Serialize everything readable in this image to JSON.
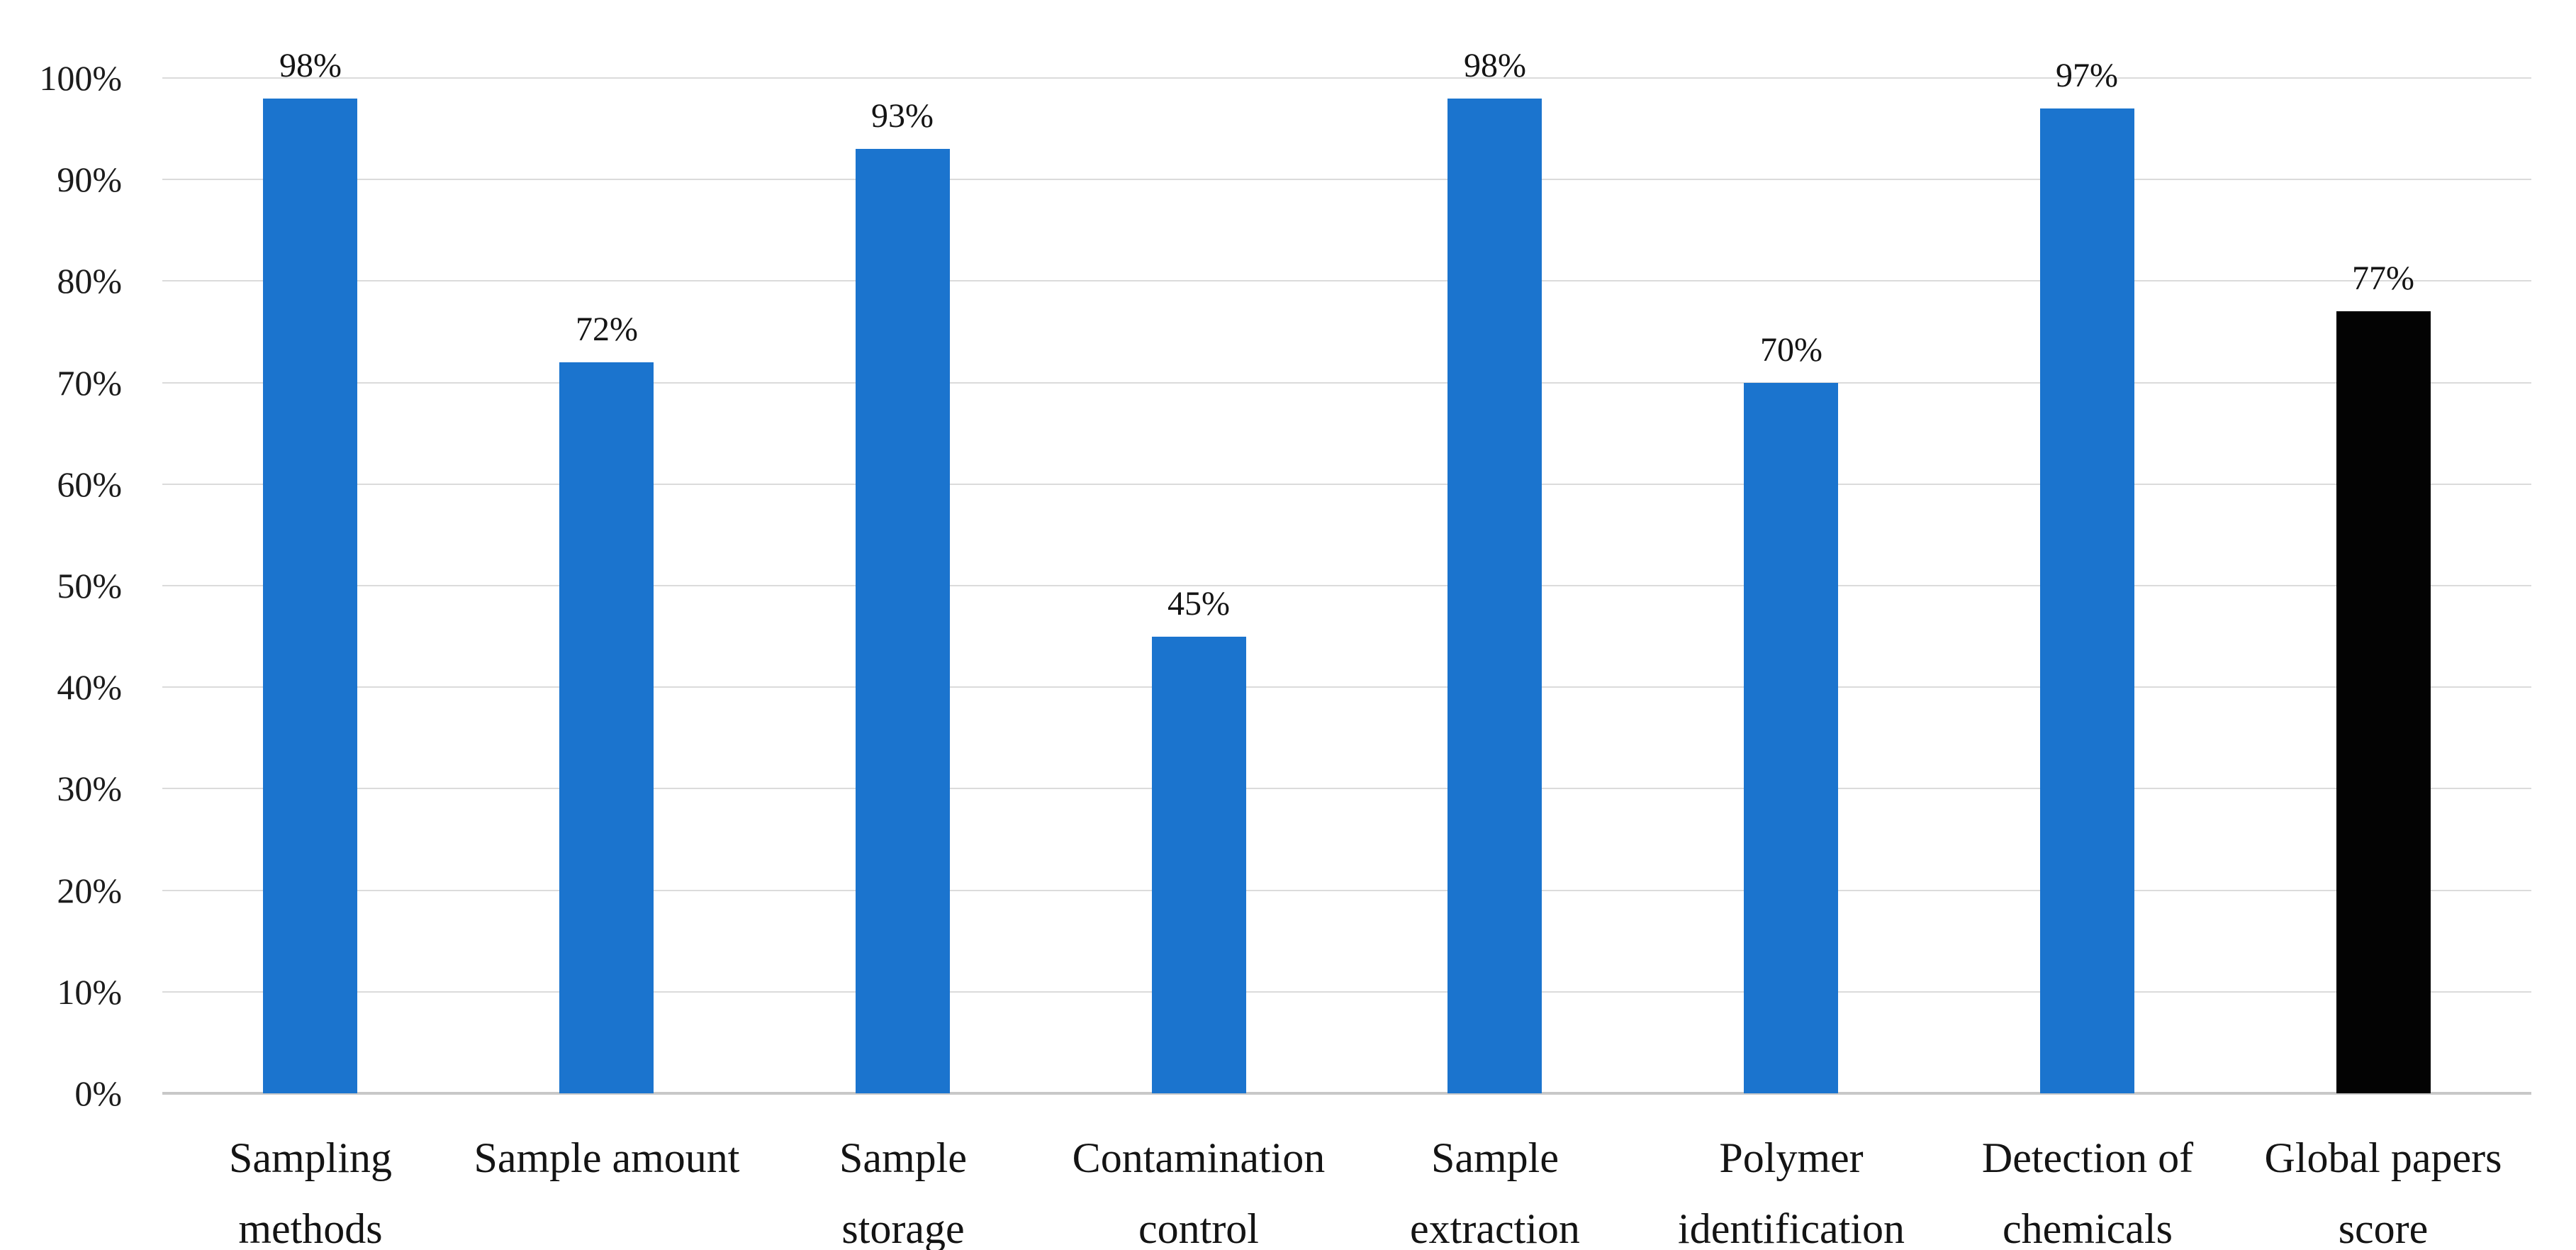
{
  "figure": {
    "background": "#ffffff",
    "title": ""
  },
  "chart_data": {
    "type": "bar",
    "title": "",
    "xlabel": "",
    "ylabel": "",
    "categories": [
      "Sampling\nmethods",
      "Sample amount",
      "Sample\nstorage",
      "Contamination\ncontrol",
      "Sample\nextraction",
      "Polymer\nidentification",
      "Detection of\nchemicals",
      "Global papers\nscore"
    ],
    "values": [
      98,
      72,
      93,
      45,
      98,
      70,
      97,
      77
    ],
    "value_labels": [
      "98%",
      "72%",
      "93%",
      "45%",
      "98%",
      "70%",
      "97%",
      "77%"
    ],
    "bar_colors": [
      "#1B74CE",
      "#1B74CE",
      "#1B74CE",
      "#1B74CE",
      "#1B74CE",
      "#1B74CE",
      "#1B74CE",
      "#030303"
    ],
    "ylim": [
      0,
      100
    ],
    "yticks": [
      {
        "label": "0%",
        "value": 0
      },
      {
        "label": "10%",
        "value": 10
      },
      {
        "label": "20%",
        "value": 20
      },
      {
        "label": "30%",
        "value": 30
      },
      {
        "label": "40%",
        "value": 40
      },
      {
        "label": "50%",
        "value": 50
      },
      {
        "label": "60%",
        "value": 60
      },
      {
        "label": "70%",
        "value": 70
      },
      {
        "label": "80%",
        "value": 80
      },
      {
        "label": "90%",
        "value": 90
      },
      {
        "label": "100%",
        "value": 100
      }
    ],
    "grid": true,
    "legend": null,
    "colors": {
      "default_bar": "#1B74CE",
      "highlight_bar": "#030303",
      "gridline": "#DBDBDB",
      "axis_line": "#C8C8C8",
      "text": "#141414"
    }
  }
}
